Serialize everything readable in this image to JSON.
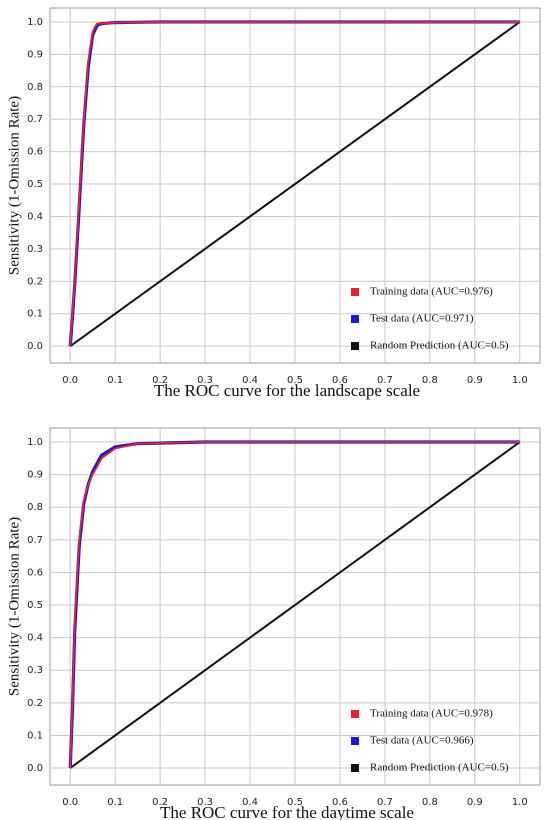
{
  "chart_data": [
    {
      "type": "line",
      "title": "The ROC curve for the landscape scale",
      "y_label": "Sensitivity (1-Omission Rate)",
      "xlim": [
        -0.045,
        1.045
      ],
      "ylim": [
        -0.052,
        1.043
      ],
      "xticks": [
        {
          "value": 0,
          "label": "0.0"
        },
        0.1,
        0.2,
        0.3,
        0.4,
        0.5,
        0.6,
        0.7,
        0.8,
        0.9,
        {
          "value": 1,
          "label": "1.0"
        }
      ],
      "yticks": [
        {
          "value": 0,
          "label": "0.0"
        },
        0.1,
        0.2,
        0.3,
        0.4,
        0.5,
        0.6,
        0.7,
        0.8,
        0.9,
        {
          "value": 1,
          "label": "1.0"
        }
      ],
      "grid": true,
      "series": [
        {
          "name": "Training data  (AUC=0.976)",
          "color": "#e0262e",
          "x": [
            0,
            0.005,
            0.01,
            0.02,
            0.03,
            0.04,
            0.05,
            0.055,
            0.06,
            0.1,
            0.2,
            1
          ],
          "values": [
            0,
            0.1,
            0.2,
            0.45,
            0.7,
            0.88,
            0.97,
            0.985,
            0.995,
            0.998,
            1,
            1
          ]
        },
        {
          "name": "Test data (AUC=0.971)",
          "color": "#1a1ad0",
          "x": [
            0,
            0.005,
            0.01,
            0.02,
            0.03,
            0.04,
            0.05,
            0.06,
            0.07,
            0.1,
            0.2,
            1
          ],
          "values": [
            0,
            0.09,
            0.19,
            0.43,
            0.68,
            0.86,
            0.96,
            0.99,
            0.995,
            0.998,
            1,
            1
          ]
        },
        {
          "name": "Random Prediction (AUC=0.5)",
          "color": "#111111",
          "x": [
            0,
            1
          ],
          "values": [
            0,
            1
          ]
        }
      ]
    },
    {
      "type": "line",
      "title": "The ROC curve for the daytime scale",
      "y_label": "Sensitivity (1-Omission Rate)",
      "xlim": [
        -0.045,
        1.045
      ],
      "ylim": [
        -0.052,
        1.043
      ],
      "xticks": [
        {
          "value": 0,
          "label": "0.0"
        },
        0.1,
        0.2,
        0.3,
        0.4,
        0.5,
        0.6,
        0.7,
        0.8,
        0.9,
        {
          "value": 1,
          "label": "1.0"
        }
      ],
      "yticks": [
        {
          "value": 0,
          "label": "0.0"
        },
        0.1,
        0.2,
        0.3,
        0.4,
        0.5,
        0.6,
        0.7,
        0.8,
        0.9,
        {
          "value": 1,
          "label": "1.0"
        }
      ],
      "grid": true,
      "series": [
        {
          "name": "Training data  (AUC=0.978)",
          "color": "#e0262e",
          "x": [
            0,
            0.005,
            0.01,
            0.02,
            0.03,
            0.04,
            0.05,
            0.07,
            0.1,
            0.15,
            0.3,
            1
          ],
          "values": [
            0,
            0.2,
            0.45,
            0.7,
            0.82,
            0.87,
            0.9,
            0.95,
            0.98,
            0.995,
            1,
            1
          ]
        },
        {
          "name": "Test data  (AUC=0.966)",
          "color": "#1a1ad0",
          "x": [
            0,
            0.005,
            0.01,
            0.02,
            0.03,
            0.04,
            0.05,
            0.07,
            0.1,
            0.15,
            0.3,
            1
          ],
          "values": [
            0,
            0.18,
            0.42,
            0.68,
            0.81,
            0.87,
            0.91,
            0.96,
            0.985,
            0.995,
            1,
            1
          ]
        },
        {
          "name": "Random Prediction  (AUC=0.5)",
          "color": "#111111",
          "x": [
            0,
            1
          ],
          "values": [
            0,
            1
          ]
        }
      ]
    }
  ]
}
